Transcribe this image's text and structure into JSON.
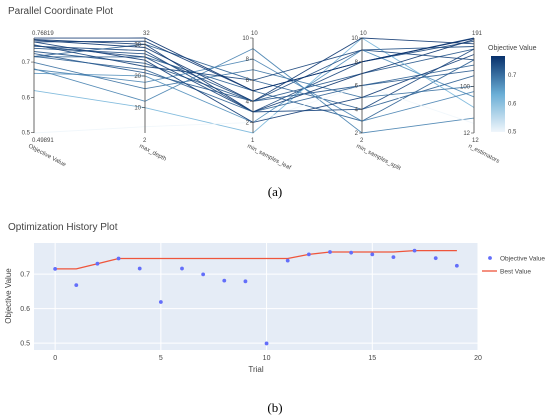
{
  "panel_labels": {
    "a": "(a)",
    "b": "(b)"
  },
  "chart_data": [
    {
      "type": "parallel_coordinates",
      "title": "Parallel Coordinate Plot",
      "colorbar": {
        "title": "Objective Value",
        "ticks": [
          "0.7",
          "0.6",
          "0.5"
        ],
        "range": [
          0.49891,
          0.76819
        ],
        "colors": [
          "#f0f6fb",
          "#08306b"
        ]
      },
      "dimensions": [
        {
          "name": "Objective Value",
          "range": [
            0.49891,
            0.76819
          ],
          "range_labels": [
            "0.49891",
            "0.76819"
          ],
          "ticks": [
            "0.7",
            "0.6",
            "0.5"
          ],
          "tick_values": [
            0.7,
            0.6,
            0.5
          ]
        },
        {
          "name": "max_depth",
          "range": [
            2,
            32
          ],
          "range_labels": [
            "2",
            "32"
          ],
          "ticks": [
            "30",
            "20",
            "10"
          ],
          "tick_values": [
            30,
            20,
            10
          ]
        },
        {
          "name": "min_samples_leaf",
          "range": [
            1,
            10
          ],
          "range_labels": [
            "1",
            "10"
          ],
          "ticks": [
            "10",
            "8",
            "6",
            "4",
            "2"
          ],
          "tick_values": [
            10,
            8,
            6,
            4,
            2
          ]
        },
        {
          "name": "min_samples_split",
          "range": [
            2,
            10
          ],
          "range_labels": [
            "2",
            "10"
          ],
          "ticks": [
            "10",
            "8",
            "6",
            "4",
            "2"
          ],
          "tick_values": [
            10,
            8,
            6,
            4,
            2
          ]
        },
        {
          "name": "n_estimators",
          "range": [
            12,
            191
          ],
          "range_labels": [
            "12",
            "191"
          ],
          "ticks": [
            "100",
            "12"
          ],
          "tick_values": [
            100,
            12
          ]
        }
      ],
      "lines": [
        [
          0.715,
          26,
          5,
          3,
          150
        ],
        [
          0.668,
          20,
          2,
          9,
          80
        ],
        [
          0.73,
          24,
          4,
          7,
          170
        ],
        [
          0.745,
          28,
          3,
          8,
          185
        ],
        [
          0.716,
          30,
          6,
          4,
          120
        ],
        [
          0.619,
          10,
          1,
          10,
          60
        ],
        [
          0.716,
          22,
          3,
          6,
          140
        ],
        [
          0.699,
          16,
          7,
          5,
          100
        ],
        [
          0.681,
          12,
          9,
          2,
          40
        ],
        [
          0.679,
          18,
          8,
          3,
          90
        ],
        [
          0.499,
          4,
          2,
          6,
          30
        ],
        [
          0.739,
          27,
          4,
          9,
          175
        ],
        [
          0.757,
          31,
          5,
          8,
          191
        ],
        [
          0.764,
          30,
          3,
          7,
          188
        ],
        [
          0.762,
          29,
          4,
          10,
          180
        ],
        [
          0.757,
          25,
          2,
          5,
          160
        ],
        [
          0.749,
          23,
          6,
          9,
          150
        ],
        [
          0.768,
          32,
          5,
          8,
          190
        ],
        [
          0.746,
          26,
          3,
          4,
          170
        ],
        [
          0.724,
          21,
          4,
          6,
          130
        ]
      ]
    },
    {
      "type": "scatter_line",
      "title": "Optimization History Plot",
      "xlabel": "Trial",
      "ylabel": "Objective Value",
      "xlim": [
        -1,
        20
      ],
      "ylim": [
        0.48,
        0.79
      ],
      "xticks": [
        0,
        5,
        10,
        15,
        20
      ],
      "yticks": [
        0.5,
        0.6,
        0.7
      ],
      "legend": "right",
      "series": [
        {
          "name": "Objective Value",
          "kind": "scatter",
          "color": "#636efa",
          "x": [
            0,
            1,
            2,
            3,
            4,
            5,
            6,
            7,
            8,
            9,
            10,
            11,
            12,
            13,
            14,
            15,
            16,
            17,
            18,
            19
          ],
          "y": [
            0.715,
            0.668,
            0.73,
            0.745,
            0.716,
            0.619,
            0.716,
            0.699,
            0.681,
            0.679,
            0.499,
            0.739,
            0.757,
            0.764,
            0.762,
            0.757,
            0.749,
            0.768,
            0.746,
            0.724
          ]
        },
        {
          "name": "Best Value",
          "kind": "line",
          "color": "#ef553b",
          "x": [
            0,
            1,
            2,
            3,
            4,
            5,
            6,
            7,
            8,
            9,
            10,
            11,
            12,
            13,
            14,
            15,
            16,
            17,
            18,
            19
          ],
          "y": [
            0.715,
            0.715,
            0.73,
            0.745,
            0.745,
            0.745,
            0.745,
            0.745,
            0.745,
            0.745,
            0.745,
            0.745,
            0.757,
            0.764,
            0.764,
            0.764,
            0.764,
            0.768,
            0.768,
            0.768
          ]
        }
      ]
    }
  ]
}
